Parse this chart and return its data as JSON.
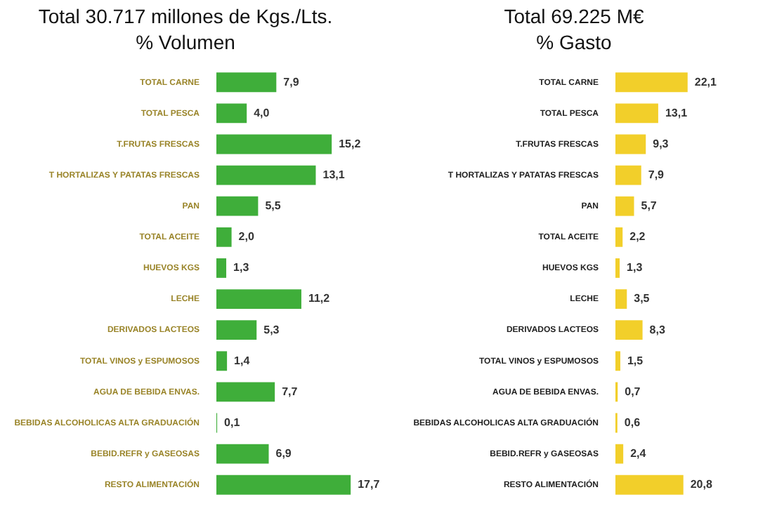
{
  "chart_data": [
    {
      "type": "bar",
      "orientation": "horizontal",
      "title": "Total 30.717 millones de Kgs./Lts.",
      "subtitle": "% Volumen",
      "categories": [
        "TOTAL CARNE",
        "TOTAL PESCA",
        "T.FRUTAS FRESCAS",
        "T HORTALIZAS Y PATATAS FRESCAS",
        "PAN",
        "TOTAL ACEITE",
        "HUEVOS KGS",
        "LECHE",
        "DERIVADOS LACTEOS",
        "TOTAL VINOS y ESPUMOSOS",
        "AGUA DE BEBIDA ENVAS.",
        "BEBIDAS ALCOHOLICAS ALTA GRADUACIÓN",
        "BEBID.REFR y GASEOSAS",
        "RESTO ALIMENTACIÓN"
      ],
      "values": [
        7.9,
        4.0,
        15.2,
        13.1,
        5.5,
        2.0,
        1.3,
        11.2,
        5.3,
        1.4,
        7.7,
        0.1,
        6.9,
        17.7
      ],
      "value_labels": [
        "7,9",
        "4,0",
        "15,2",
        "13,1",
        "5,5",
        "2,0",
        "1,3",
        "11,2",
        "5,3",
        "1,4",
        "7,7",
        "0,1",
        "6,9",
        "17,7"
      ],
      "color": "#3fae3a"
    },
    {
      "type": "bar",
      "orientation": "horizontal",
      "title": "Total 69.225 M€",
      "subtitle": "% Gasto",
      "categories": [
        "TOTAL CARNE",
        "TOTAL PESCA",
        "T.FRUTAS FRESCAS",
        "T HORTALIZAS Y PATATAS FRESCAS",
        "PAN",
        "TOTAL ACEITE",
        "HUEVOS KGS",
        "LECHE",
        "DERIVADOS LACTEOS",
        "TOTAL VINOS y ESPUMOSOS",
        "AGUA DE BEBIDA ENVAS.",
        "BEBIDAS ALCOHOLICAS ALTA GRADUACIÓN",
        "BEBID.REFR y GASEOSAS",
        "RESTO ALIMENTACIÓN"
      ],
      "values": [
        22.1,
        13.1,
        9.3,
        7.9,
        5.7,
        2.2,
        1.3,
        3.5,
        8.3,
        1.5,
        0.7,
        0.6,
        2.4,
        20.8
      ],
      "value_labels": [
        "22,1",
        "13,1",
        "9,3",
        "7,9",
        "5,7",
        "2,2",
        "1,3",
        "3,5",
        "8,3",
        "1,5",
        "0,7",
        "0,6",
        "2,4",
        "20,8"
      ],
      "color": "#f2cf2a"
    }
  ]
}
